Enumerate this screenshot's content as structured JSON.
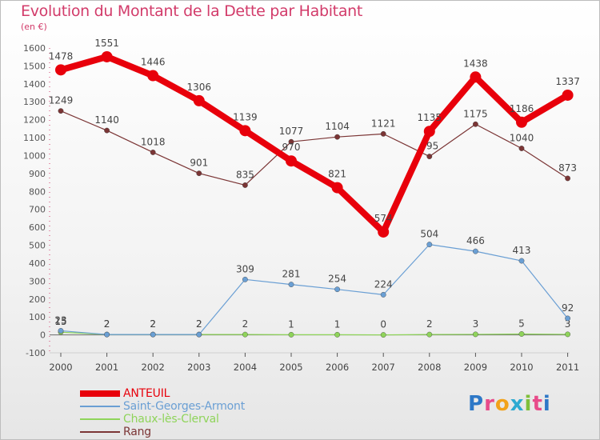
{
  "header": {
    "title": "Evolution du Montant de la Dette par Habitant",
    "subtitle": "(en €)"
  },
  "logo": {
    "text": "Proxiti",
    "colors": [
      "#2e78c7",
      "#e84b8a",
      "#f2a21a",
      "#2eaad1",
      "#7fbf3a",
      "#e84b8a",
      "#2e78c7"
    ]
  },
  "colors": {
    "title": "#d23b6a",
    "grid_zero": "#6b6b6b",
    "axis_label": "#555555"
  },
  "chart_data": {
    "type": "line",
    "title": "Evolution du Montant de la Dette par Habitant",
    "unit": "(en €)",
    "x": [
      "2000",
      "2001",
      "2002",
      "2003",
      "2004",
      "2005",
      "2006",
      "2007",
      "2008",
      "2009",
      "2010",
      "2011"
    ],
    "ylim": [
      -100,
      1600
    ],
    "yticks": [
      -100,
      0,
      100,
      200,
      300,
      400,
      500,
      600,
      700,
      800,
      900,
      1000,
      1100,
      1200,
      1300,
      1400,
      1500,
      1600
    ],
    "grid": false,
    "legend_position": "bottom-left",
    "series": [
      {
        "name": "ANTEUIL",
        "color": "#e8000b",
        "values": [
          1478,
          1551,
          1446,
          1306,
          1139,
          970,
          821,
          574,
          1135,
          1438,
          1186,
          1337
        ],
        "labels": [
          "1478",
          "1551",
          "1446",
          "1306",
          "1139",
          "970",
          "821",
          "574",
          "1135",
          "1438",
          "1186",
          "1337"
        ]
      },
      {
        "name": "Saint-Georges-Armont",
        "color": "#6a9fd4",
        "values": [
          23,
          2,
          2,
          2,
          309,
          281,
          254,
          224,
          504,
          466,
          413,
          92
        ],
        "labels": [
          "23",
          "2",
          "2",
          "2",
          "309",
          "281",
          "254",
          "224",
          "504",
          "466",
          "413",
          "92"
        ]
      },
      {
        "name": "Chaux-lès-Clerval",
        "color": "#8fd45a",
        "values": [
          15,
          2,
          2,
          2,
          2,
          1,
          1,
          0,
          2,
          3,
          5,
          3
        ],
        "labels": [
          "15",
          "2",
          "2",
          "2",
          "2",
          "1",
          "1",
          "0",
          "2",
          "3",
          "5",
          "3"
        ]
      },
      {
        "name": "Rang",
        "color": "#7b3535",
        "values": [
          1249,
          1140,
          1018,
          901,
          835,
          1077,
          1104,
          1121,
          995,
          1175,
          1040,
          873
        ],
        "labels": [
          "1249",
          "1140",
          "1018",
          "901",
          "835",
          "1077",
          "1104",
          "1121",
          "995",
          "1175",
          "1040",
          "873"
        ]
      }
    ]
  }
}
